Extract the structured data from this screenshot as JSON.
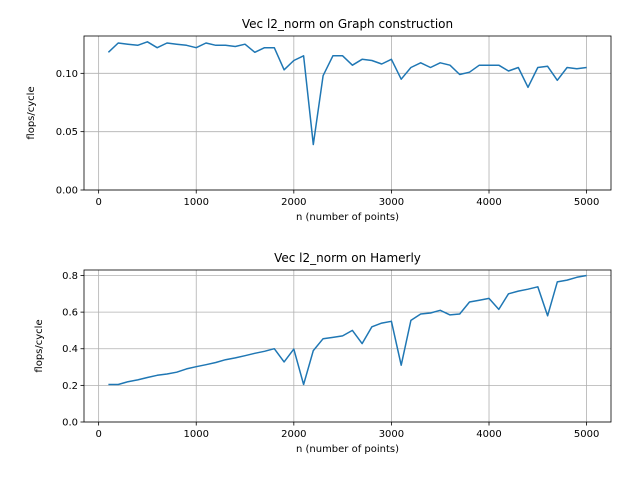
{
  "chart_data": [
    {
      "type": "line",
      "title": "Vec l2_norm on Graph construction",
      "xlabel": "n (number of points)",
      "ylabel": "flops/cycle",
      "xlim": [
        -150,
        5250
      ],
      "ylim": [
        0,
        0.132
      ],
      "xticks": [
        0,
        1000,
        2000,
        3000,
        4000,
        5000
      ],
      "yticks": [
        0.0,
        0.05,
        0.1
      ],
      "ytick_labels": [
        "0.00",
        "0.05",
        "0.10"
      ],
      "grid": true,
      "series": [
        {
          "color": "#1f77b4",
          "x": [
            100,
            200,
            300,
            400,
            500,
            600,
            700,
            800,
            900,
            1000,
            1100,
            1200,
            1300,
            1400,
            1500,
            1600,
            1700,
            1800,
            1900,
            2000,
            2100,
            2200,
            2300,
            2400,
            2500,
            2600,
            2700,
            2800,
            2900,
            3000,
            3100,
            3200,
            3300,
            3400,
            3500,
            3600,
            3700,
            3800,
            3900,
            4000,
            4100,
            4200,
            4300,
            4400,
            4500,
            4600,
            4700,
            4800,
            4900,
            5000
          ],
          "y": [
            0.118,
            0.126,
            0.125,
            0.124,
            0.127,
            0.122,
            0.126,
            0.125,
            0.124,
            0.122,
            0.126,
            0.124,
            0.124,
            0.123,
            0.125,
            0.118,
            0.122,
            0.122,
            0.103,
            0.111,
            0.115,
            0.039,
            0.098,
            0.115,
            0.115,
            0.107,
            0.112,
            0.111,
            0.108,
            0.112,
            0.095,
            0.105,
            0.109,
            0.105,
            0.109,
            0.107,
            0.099,
            0.101,
            0.107,
            0.107,
            0.107,
            0.102,
            0.105,
            0.088,
            0.105,
            0.106,
            0.094,
            0.105,
            0.104,
            0.105
          ]
        }
      ]
    },
    {
      "type": "line",
      "title": "Vec l2_norm on Hamerly",
      "xlabel": "n (number of points)",
      "ylabel": "flops/cycle",
      "xlim": [
        -150,
        5250
      ],
      "ylim": [
        0,
        0.83
      ],
      "xticks": [
        0,
        1000,
        2000,
        3000,
        4000,
        5000
      ],
      "yticks": [
        0.0,
        0.2,
        0.4,
        0.6,
        0.8
      ],
      "ytick_labels": [
        "0.0",
        "0.2",
        "0.4",
        "0.6",
        "0.8"
      ],
      "grid": true,
      "series": [
        {
          "color": "#1f77b4",
          "x": [
            100,
            200,
            300,
            400,
            500,
            600,
            700,
            800,
            900,
            1000,
            1100,
            1200,
            1300,
            1400,
            1500,
            1600,
            1700,
            1800,
            1900,
            2000,
            2100,
            2200,
            2300,
            2400,
            2500,
            2600,
            2700,
            2800,
            2900,
            3000,
            3100,
            3200,
            3300,
            3400,
            3500,
            3600,
            3700,
            3800,
            3900,
            4000,
            4100,
            4200,
            4300,
            4400,
            4500,
            4600,
            4700,
            4800,
            4900,
            5000
          ],
          "y": [
            0.205,
            0.205,
            0.22,
            0.23,
            0.243,
            0.255,
            0.262,
            0.272,
            0.29,
            0.302,
            0.313,
            0.325,
            0.34,
            0.35,
            0.362,
            0.375,
            0.386,
            0.4,
            0.328,
            0.398,
            0.205,
            0.39,
            0.455,
            0.462,
            0.47,
            0.5,
            0.428,
            0.52,
            0.54,
            0.55,
            0.31,
            0.555,
            0.59,
            0.595,
            0.61,
            0.585,
            0.59,
            0.655,
            0.665,
            0.675,
            0.615,
            0.7,
            0.715,
            0.725,
            0.738,
            0.58,
            0.765,
            0.775,
            0.79,
            0.8
          ]
        }
      ]
    }
  ]
}
